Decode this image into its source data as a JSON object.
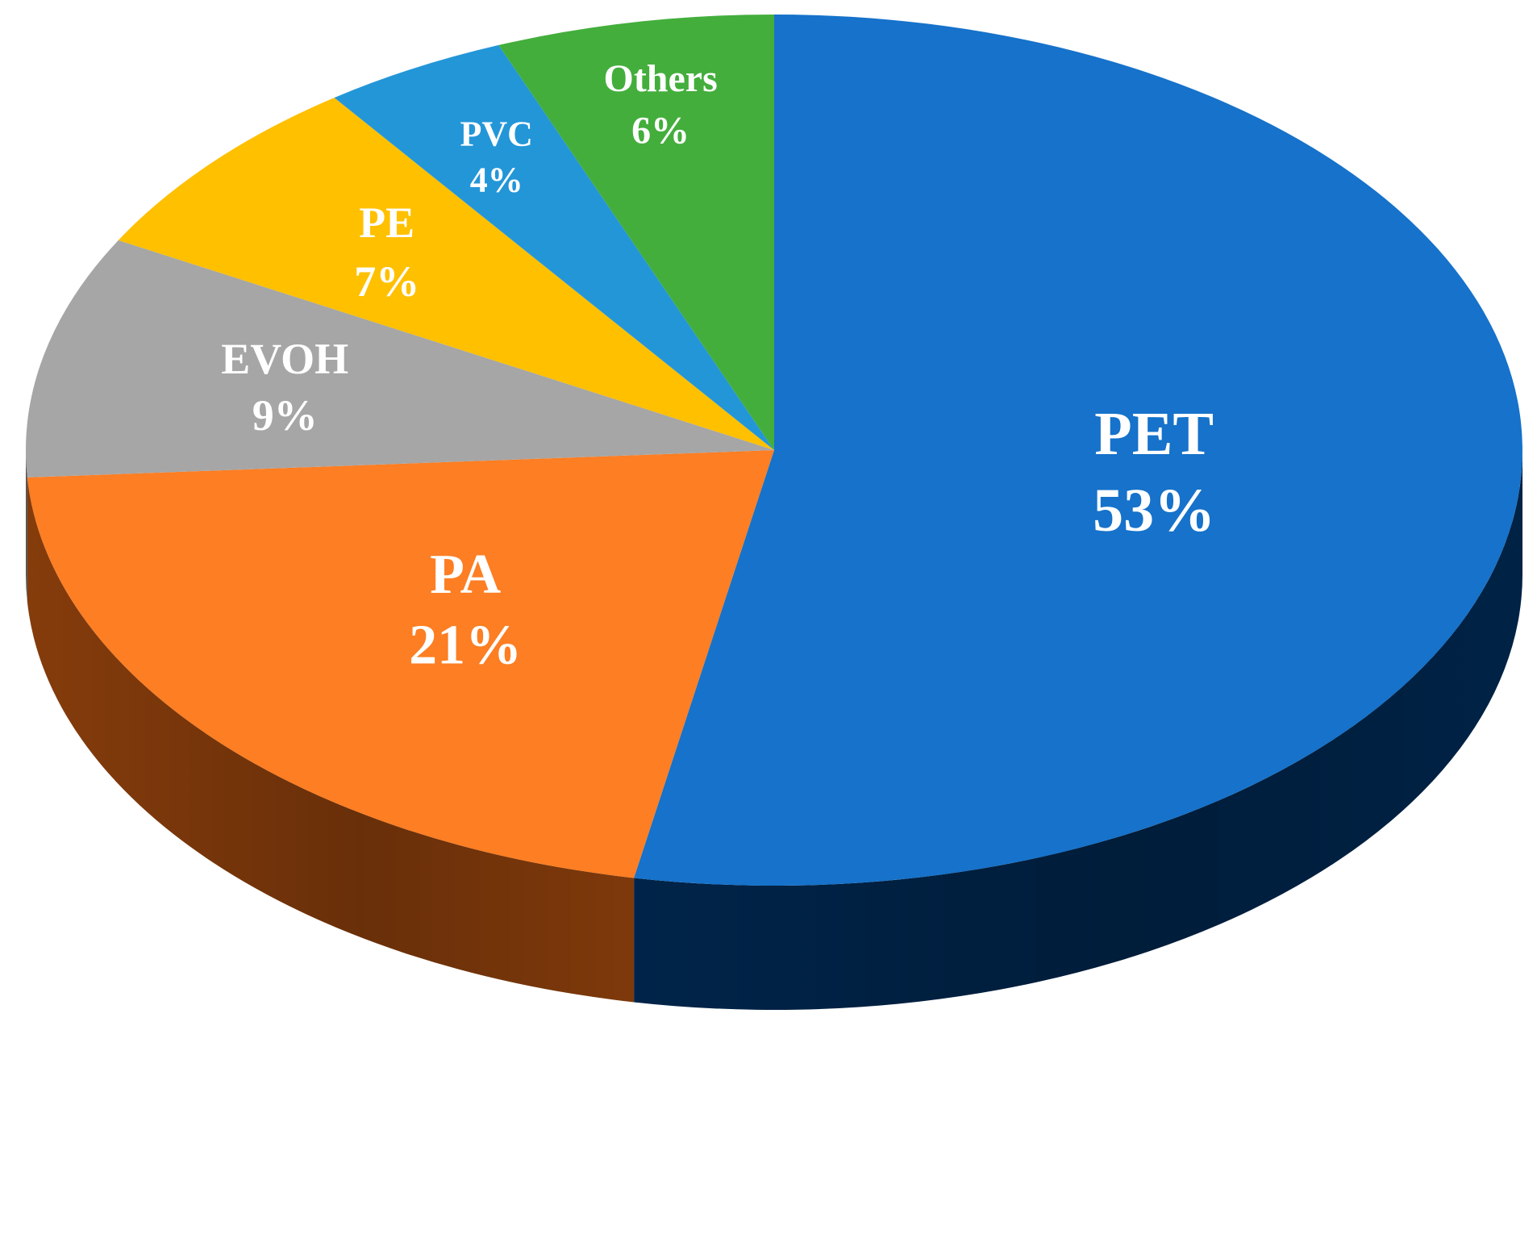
{
  "chart_data": {
    "type": "pie",
    "style": "3d-tilted",
    "start": "12 o'clock",
    "direction": "clockwise",
    "slices": [
      {
        "name": "PET",
        "label": "PET",
        "percent_label": "53%",
        "value": 53,
        "color": "#1672CA",
        "side_color": "#00264D"
      },
      {
        "name": "PA",
        "label": "PA",
        "percent_label": "21%",
        "value": 21,
        "color": "#FD7E23",
        "side_color": "#8C3F0C"
      },
      {
        "name": "EVOH",
        "label": "EVOH",
        "percent_label": "9%",
        "value": 9,
        "color": "#A6A6A6",
        "side_color": "#5E5E5E"
      },
      {
        "name": "PE",
        "label": "PE",
        "percent_label": "7%",
        "value": 7,
        "color": "#FFC000",
        "side_color": "#8A6700"
      },
      {
        "name": "PVC",
        "label": "PVC",
        "percent_label": "4%",
        "value": 4,
        "color": "#2396D8",
        "side_color": "#0E4C72"
      },
      {
        "name": "Others",
        "label": "Others",
        "percent_label": "6%",
        "value": 6,
        "color": "#43AE3C",
        "side_color": "#1E5A1B"
      }
    ]
  }
}
